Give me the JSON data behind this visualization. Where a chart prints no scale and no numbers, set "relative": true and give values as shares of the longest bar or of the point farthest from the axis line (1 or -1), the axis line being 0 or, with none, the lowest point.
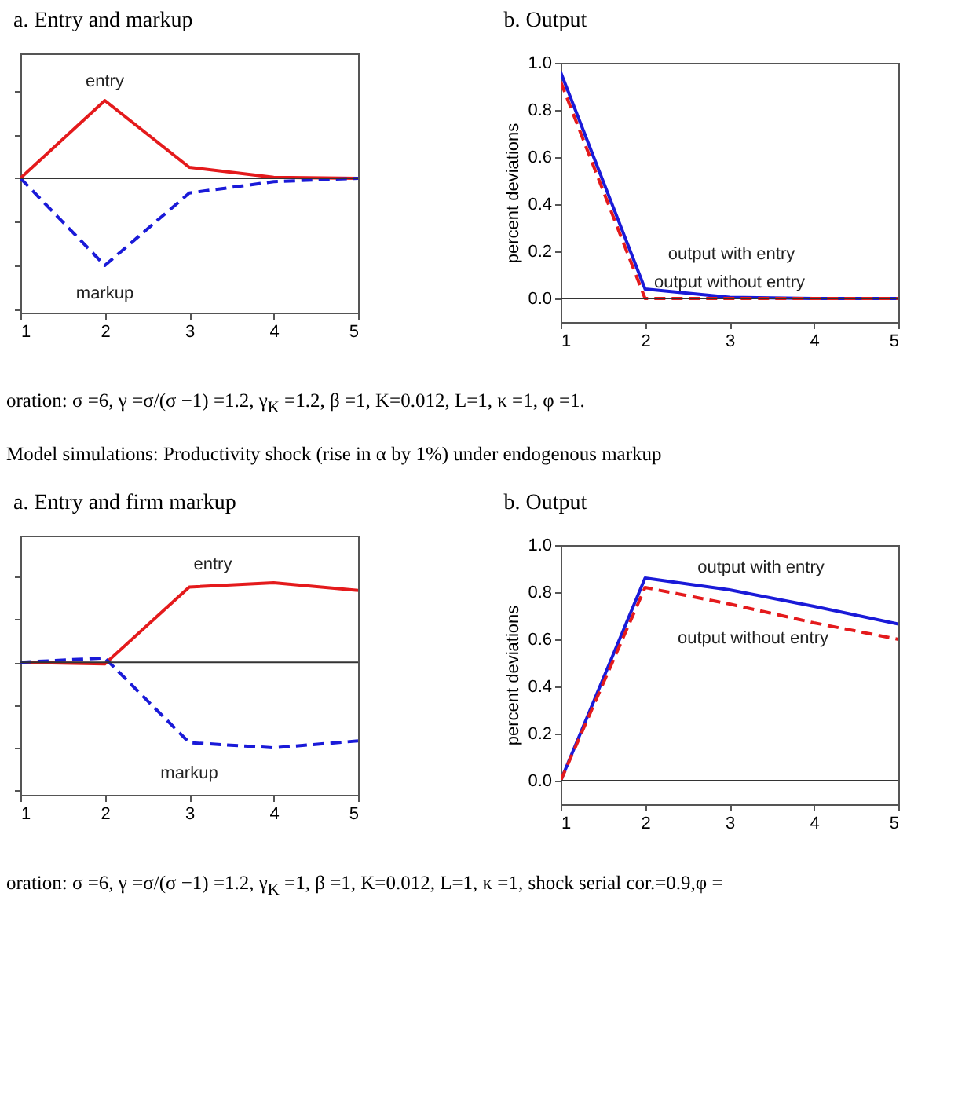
{
  "chart_data": [
    {
      "type": "line",
      "title": "a. Entry and markup",
      "relative": true,
      "x": [
        1,
        2,
        3,
        4,
        5
      ],
      "xlim": [
        1,
        5
      ],
      "xticks": [
        1,
        2,
        3,
        4,
        5
      ],
      "grid": false,
      "legend": false,
      "series": [
        {
          "name": "entry",
          "color": "#e41a1c",
          "line_style": "solid",
          "values": [
            0,
            0.89,
            0.125,
            0.01,
            0
          ]
        },
        {
          "name": "markup",
          "color": "#1a1ad8",
          "line_style": "dashed",
          "values": [
            0,
            -1,
            -0.17,
            -0.04,
            0
          ]
        }
      ],
      "ref_lines": [
        {
          "axis": "y",
          "value": 0,
          "color": "#333333"
        }
      ]
    },
    {
      "type": "line",
      "title": "b. Output",
      "ylabel": "percent deviations",
      "x": [
        1,
        2,
        3,
        4,
        5
      ],
      "xlim": [
        1,
        5
      ],
      "xticks": [
        1,
        2,
        3,
        4,
        5
      ],
      "ylim": [
        -0.1,
        1.0
      ],
      "yticks": [
        {
          "value": 0,
          "label": "0.0"
        },
        {
          "value": 0.2,
          "label": "0.2"
        },
        {
          "value": 0.4,
          "label": "0.4"
        },
        {
          "value": 0.6,
          "label": "0.6"
        },
        {
          "value": 0.8,
          "label": "0.8"
        },
        {
          "value": 1,
          "label": "1.0"
        }
      ],
      "grid": false,
      "legend": false,
      "series": [
        {
          "name": "output with entry",
          "color": "#1a1ad8",
          "line_style": "solid",
          "values": [
            0.96,
            0.04,
            0.005,
            0,
            0
          ]
        },
        {
          "name": "output without entry",
          "color": "#e41a1c",
          "line_style": "dashed",
          "values": [
            0.92,
            0,
            0,
            0,
            0
          ]
        }
      ],
      "ref_lines": [
        {
          "axis": "y",
          "value": 0,
          "color": "#333333"
        }
      ],
      "annotations": [
        "oration: σ =6, γ =σ/(σ −1) =1.2, γ$_{K}$ =1.2, β =1, K=0.012, L=1, κ =1, φ =1."
      ]
    },
    {
      "type": "line",
      "title": "a. Entry and firm markup",
      "relative": true,
      "x": [
        1,
        2,
        3,
        4,
        5
      ],
      "xlim": [
        1,
        5
      ],
      "xticks": [
        1,
        2,
        3,
        4,
        5
      ],
      "grid": false,
      "legend": false,
      "series": [
        {
          "name": "entry",
          "color": "#e41a1c",
          "line_style": "solid",
          "values": [
            0,
            -0.02,
            0.88,
            0.93,
            0.84
          ]
        },
        {
          "name": "markup",
          "color": "#1a1ad8",
          "line_style": "dashed",
          "values": [
            0,
            0.05,
            -0.94,
            -1,
            -0.92
          ]
        }
      ],
      "ref_lines": [
        {
          "axis": "y",
          "value": 0,
          "color": "#333333"
        }
      ],
      "annotations": [
        "Model simulations: Productivity shock (rise in α by 1%) under endogenous markup"
      ]
    },
    {
      "type": "line",
      "title": "b. Output",
      "ylabel": "percent deviations",
      "x": [
        1,
        2,
        3,
        4,
        5
      ],
      "xlim": [
        1,
        5
      ],
      "xticks": [
        1,
        2,
        3,
        4,
        5
      ],
      "ylim": [
        -0.1,
        1.0
      ],
      "yticks": [
        {
          "value": 0,
          "label": "0.0"
        },
        {
          "value": 0.2,
          "label": "0.2"
        },
        {
          "value": 0.4,
          "label": "0.4"
        },
        {
          "value": 0.6,
          "label": "0.6"
        },
        {
          "value": 0.8,
          "label": "0.8"
        },
        {
          "value": 1,
          "label": "1.0"
        }
      ],
      "grid": false,
      "legend": false,
      "series": [
        {
          "name": "output with entry",
          "color": "#1a1ad8",
          "line_style": "solid",
          "values": [
            0,
            0.86,
            0.81,
            0.74,
            0.665
          ]
        },
        {
          "name": "output without entry",
          "color": "#e41a1c",
          "line_style": "dashed",
          "values": [
            0,
            0.82,
            0.75,
            0.67,
            0.6
          ]
        }
      ],
      "ref_lines": [
        {
          "axis": "y",
          "value": 0,
          "color": "#333333"
        }
      ],
      "annotations": [
        "oration: σ =6, γ =σ/(σ −1) =1.2, γ$_{K}$ =1, β =1, K=0.012, L=1, κ =1, shock serial cor.=0.9,φ ="
      ]
    }
  ]
}
